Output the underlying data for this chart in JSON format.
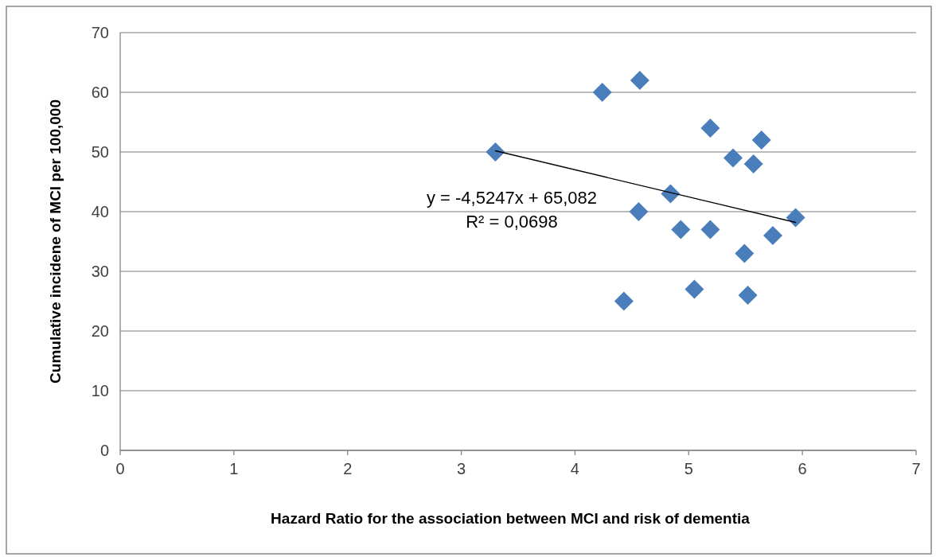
{
  "chart_data": {
    "type": "scatter",
    "xlabel": "Hazard Ratio for the association between MCI and risk of dementia",
    "ylabel": "Cumulative incidene of MCI per 100,000",
    "series": [
      {
        "color": "#4a7ebb",
        "marker": "diamond",
        "x": [
          3.3,
          4.24,
          4.57,
          5.19,
          5.39,
          5.64,
          5.57,
          4.84,
          4.56,
          4.93,
          5.19,
          5.49,
          5.74,
          5.94,
          5.05,
          5.52,
          4.43
        ],
        "values": [
          50,
          60,
          62,
          54,
          49,
          52,
          48,
          43,
          40,
          37,
          37,
          33,
          36,
          39,
          27,
          26,
          25
        ]
      },
      {
        "type": "line",
        "color": "#000000",
        "marker": "none",
        "x": [
          3.3,
          5.94
        ],
        "values": [
          50.2,
          38.2
        ]
      }
    ],
    "annotations": [
      "y = -4,5247x + 65,082",
      "R² = 0,0698"
    ],
    "xlim": [
      0,
      7
    ],
    "xticks": [
      0,
      1,
      2,
      3,
      4,
      5,
      6,
      7
    ],
    "ylim": [
      0,
      70
    ],
    "yticks": [
      0,
      10,
      20,
      30,
      40,
      50,
      60,
      70
    ],
    "grid": "y"
  }
}
